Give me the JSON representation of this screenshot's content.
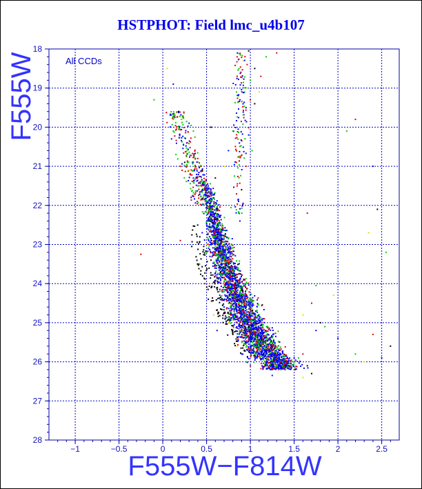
{
  "chart_data": {
    "type": "scatter",
    "title": "HSTPHOT: Field lmc_u4b107",
    "annotation": "All CCDs",
    "xlabel": "F555W−F814W",
    "ylabel": "F555W",
    "xlim": [
      -1.3,
      2.7
    ],
    "ylim": [
      28,
      18
    ],
    "y_inverted": true,
    "grid": true,
    "x_ticks": [
      -1,
      -0.5,
      0,
      0.5,
      1,
      1.5,
      2,
      2.5
    ],
    "x_tick_labels": [
      "−1",
      "−0.5",
      "0",
      "0.5",
      "1",
      "1.5",
      "2",
      "2.5"
    ],
    "y_ticks": [
      18,
      19,
      20,
      21,
      22,
      23,
      24,
      25,
      26,
      27,
      28
    ],
    "y_tick_labels": [
      "18",
      "19",
      "20",
      "21",
      "22",
      "23",
      "24",
      "25",
      "26",
      "27",
      "28"
    ],
    "colors": {
      "frame": "#0000aa",
      "grid": "#0000cc",
      "title": "#0000ee"
    },
    "point_colors": [
      "#0000ff",
      "#00cc00",
      "#dd0000",
      "#000000",
      "#dddd00"
    ],
    "main_sequence_ridge": [
      [
        0.42,
        21.2
      ],
      [
        0.5,
        21.6
      ],
      [
        0.55,
        22.0
      ],
      [
        0.6,
        22.5
      ],
      [
        0.65,
        23.0
      ],
      [
        0.72,
        23.5
      ],
      [
        0.8,
        24.0
      ],
      [
        0.88,
        24.5
      ],
      [
        0.98,
        25.0
      ],
      [
        1.08,
        25.4
      ],
      [
        1.2,
        25.8
      ],
      [
        1.35,
        26.1
      ]
    ],
    "points": [
      [
        0.1,
        20.3
      ],
      [
        0.15,
        20.7
      ],
      [
        0.2,
        21.0
      ],
      [
        0.25,
        20.9
      ],
      [
        0.3,
        21.1
      ],
      [
        0.35,
        21.3
      ],
      [
        0.4,
        21.5
      ],
      [
        0.28,
        20.4
      ],
      [
        0.18,
        19.6
      ],
      [
        0.22,
        19.8
      ],
      [
        0.3,
        19.9
      ],
      [
        0.35,
        20.1
      ],
      [
        0.4,
        20.8
      ],
      [
        0.45,
        21.1
      ],
      [
        0.5,
        21.4
      ],
      [
        0.45,
        21.6
      ],
      [
        0.5,
        21.8
      ],
      [
        0.55,
        21.9
      ],
      [
        0.6,
        22.2
      ],
      [
        0.55,
        22.3
      ],
      [
        0.62,
        22.4
      ],
      [
        0.58,
        22.6
      ],
      [
        0.65,
        22.7
      ],
      [
        0.6,
        22.9
      ],
      [
        0.68,
        23.0
      ],
      [
        0.7,
        23.2
      ],
      [
        0.64,
        23.3
      ],
      [
        0.75,
        23.4
      ],
      [
        0.72,
        23.6
      ],
      [
        0.8,
        23.7
      ],
      [
        0.77,
        23.9
      ],
      [
        0.85,
        24.0
      ],
      [
        0.82,
        24.2
      ],
      [
        0.9,
        24.3
      ],
      [
        0.88,
        24.5
      ],
      [
        0.95,
        24.6
      ],
      [
        0.92,
        24.8
      ],
      [
        1.0,
        24.9
      ],
      [
        0.98,
        25.1
      ],
      [
        1.05,
        25.2
      ],
      [
        1.02,
        25.4
      ],
      [
        1.1,
        25.5
      ],
      [
        1.08,
        25.7
      ],
      [
        1.15,
        25.8
      ],
      [
        1.2,
        25.9
      ],
      [
        1.25,
        26.0
      ],
      [
        1.3,
        26.1
      ],
      [
        1.35,
        26.0
      ],
      [
        1.4,
        26.1
      ],
      [
        1.45,
        26.0
      ],
      [
        1.5,
        25.9
      ],
      [
        1.55,
        25.9
      ],
      [
        1.6,
        25.8
      ],
      [
        1.65,
        26.1
      ],
      [
        0.85,
        25.6
      ],
      [
        0.9,
        25.8
      ],
      [
        0.95,
        26.0
      ],
      [
        1.0,
        26.1
      ],
      [
        0.8,
        25.3
      ],
      [
        0.75,
        25.0
      ],
      [
        0.7,
        24.6
      ],
      [
        0.65,
        24.2
      ],
      [
        0.6,
        23.8
      ],
      [
        0.55,
        23.4
      ],
      [
        0.5,
        23.0
      ],
      [
        0.45,
        22.7
      ],
      [
        0.42,
        23.5
      ],
      [
        0.48,
        24.0
      ],
      [
        0.52,
        24.4
      ],
      [
        0.58,
        24.8
      ],
      [
        0.62,
        25.2
      ],
      [
        0.5,
        23.2
      ],
      [
        1.0,
        19.3
      ],
      [
        1.05,
        19.4
      ],
      [
        1.1,
        19.1
      ],
      [
        0.95,
        19.5
      ],
      [
        1.0,
        18.8
      ],
      [
        1.12,
        18.7
      ],
      [
        1.05,
        18.5
      ],
      [
        0.92,
        18.3
      ],
      [
        0.98,
        20.2
      ],
      [
        1.02,
        20.6
      ],
      [
        0.95,
        21.0
      ],
      [
        0.9,
        21.6
      ],
      [
        0.85,
        22.0
      ],
      [
        0.88,
        22.4
      ],
      [
        1.18,
        18.2
      ],
      [
        1.3,
        18.1
      ],
      [
        0.98,
        18.05
      ],
      [
        0.05,
        18.5
      ],
      [
        0.12,
        18.9
      ],
      [
        -0.1,
        19.3
      ],
      [
        -0.25,
        23.25
      ],
      [
        0.6,
        21.3
      ],
      [
        0.7,
        21.0
      ],
      [
        0.75,
        20.6
      ],
      [
        0.8,
        20.1
      ],
      [
        0.2,
        22.9
      ],
      [
        0.55,
        20.0
      ],
      [
        1.6,
        24.8
      ],
      [
        1.75,
        25.2
      ],
      [
        1.85,
        25.1
      ],
      [
        1.7,
        24.5
      ],
      [
        1.8,
        25.0
      ],
      [
        1.95,
        24.3
      ],
      [
        2.0,
        25.4
      ],
      [
        2.2,
        25.8
      ],
      [
        2.4,
        25.3
      ],
      [
        2.6,
        25.6
      ],
      [
        2.3,
        26.0
      ],
      [
        2.5,
        25.9
      ],
      [
        2.1,
        20.1
      ],
      [
        2.2,
        19.8
      ],
      [
        2.45,
        22.1
      ],
      [
        2.35,
        22.7
      ],
      [
        2.4,
        21.0
      ],
      [
        2.55,
        23.2
      ],
      [
        1.5,
        26.2
      ],
      [
        1.7,
        26.3
      ],
      [
        1.6,
        26.4
      ],
      [
        1.25,
        26.35
      ],
      [
        1.75,
        24.05
      ],
      [
        1.65,
        22.2
      ]
    ]
  }
}
